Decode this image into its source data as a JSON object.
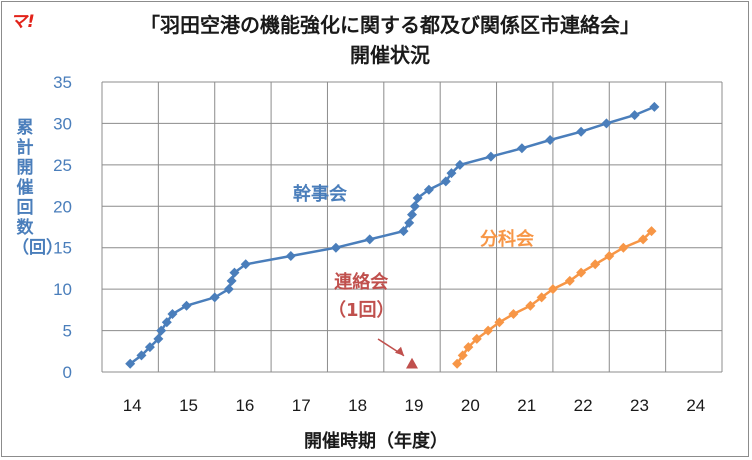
{
  "logo_text": "マ!",
  "title_line1": "「羽田空港の機能強化に関する都及び関係区市連絡会」",
  "title_line2": "開催状況",
  "ylabel": "累計開催回数（回）",
  "xlabel": "開催時期（年度）",
  "colors": {
    "kanji": "#4a7ebb",
    "bunka": "#f79646",
    "renraku": "#c0504d"
  },
  "annotations": {
    "renraku_name": "連絡会",
    "renraku_count": "（1回）"
  },
  "chart_data": {
    "type": "line",
    "xlim": [
      13.5,
      24.5
    ],
    "ylim": [
      0,
      35
    ],
    "x_ticks": [
      "14",
      "15",
      "16",
      "17",
      "18",
      "19",
      "20",
      "21",
      "22",
      "23",
      "24"
    ],
    "y_ticks": [
      "0",
      "5",
      "10",
      "15",
      "20",
      "25",
      "30",
      "35"
    ],
    "grid": true,
    "series": [
      {
        "name": "幹事会",
        "marker": "diamond",
        "points": [
          [
            14.0,
            1
          ],
          [
            14.2,
            2
          ],
          [
            14.35,
            3
          ],
          [
            14.5,
            4
          ],
          [
            14.55,
            5
          ],
          [
            14.65,
            6
          ],
          [
            14.75,
            7
          ],
          [
            15.0,
            8
          ],
          [
            15.5,
            9
          ],
          [
            15.75,
            10
          ],
          [
            15.8,
            11
          ],
          [
            15.85,
            12
          ],
          [
            16.05,
            13
          ],
          [
            16.85,
            14
          ],
          [
            17.65,
            15
          ],
          [
            18.25,
            16
          ],
          [
            18.85,
            17
          ],
          [
            18.95,
            18
          ],
          [
            19.0,
            19
          ],
          [
            19.05,
            20
          ],
          [
            19.1,
            21
          ],
          [
            19.3,
            22
          ],
          [
            19.6,
            23
          ],
          [
            19.7,
            24
          ],
          [
            19.85,
            25
          ],
          [
            20.4,
            26
          ],
          [
            20.95,
            27
          ],
          [
            21.45,
            28
          ],
          [
            22.0,
            29
          ],
          [
            22.45,
            30
          ],
          [
            22.95,
            31
          ],
          [
            23.3,
            32
          ]
        ]
      },
      {
        "name": "分科会",
        "marker": "diamond",
        "points": [
          [
            19.8,
            1
          ],
          [
            19.9,
            2
          ],
          [
            20.0,
            3
          ],
          [
            20.15,
            4
          ],
          [
            20.35,
            5
          ],
          [
            20.55,
            6
          ],
          [
            20.8,
            7
          ],
          [
            21.1,
            8
          ],
          [
            21.3,
            9
          ],
          [
            21.5,
            10
          ],
          [
            21.8,
            11
          ],
          [
            22.0,
            12
          ],
          [
            22.25,
            13
          ],
          [
            22.5,
            14
          ],
          [
            22.75,
            15
          ],
          [
            23.1,
            16
          ],
          [
            23.25,
            17
          ]
        ]
      },
      {
        "name": "連絡会",
        "marker": "triangle",
        "points": [
          [
            19.0,
            1
          ]
        ]
      }
    ]
  }
}
